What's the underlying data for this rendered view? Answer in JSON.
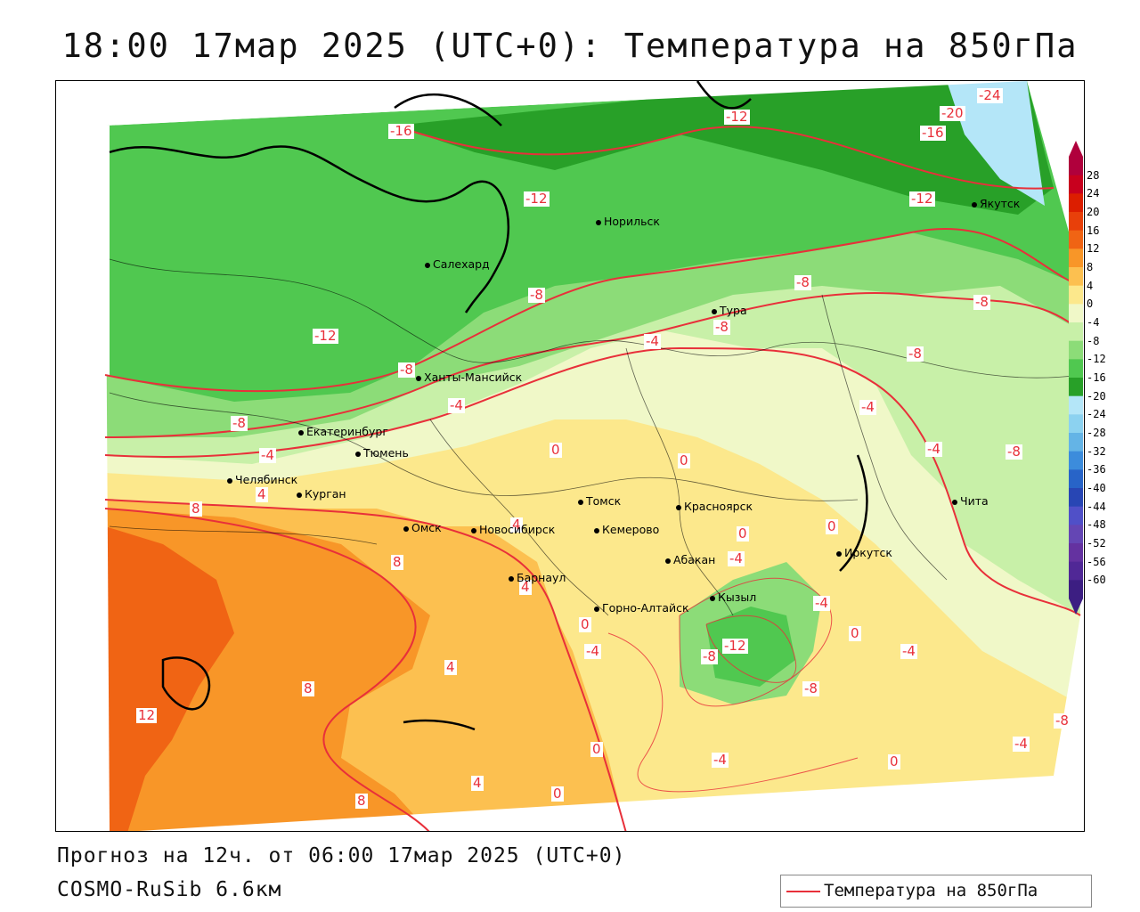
{
  "title": "18:00 17мар 2025 (UTC+0): Температура на 850гПа",
  "footer": {
    "forecast": "Прогноз на 12ч. от 06:00 17мар 2025 (UTC+0)",
    "model": "COSMO-RuSib 6.6км"
  },
  "legend": {
    "label": "Температура на 850гПа",
    "line_color": "#e8303a"
  },
  "colorbar": {
    "ticks": [
      "28",
      "24",
      "20",
      "16",
      "12",
      "8",
      "4",
      "0",
      "-4",
      "-8",
      "-12",
      "-16",
      "-20",
      "-24",
      "-28",
      "-32",
      "-36",
      "-40",
      "-44",
      "-48",
      "-52",
      "-56",
      "-60"
    ],
    "colors": [
      "#b0003c",
      "#c8001e",
      "#dc1e00",
      "#e8400a",
      "#f06414",
      "#f89628",
      "#fcc050",
      "#fce88c",
      "#f0f8c8",
      "#c8f0a8",
      "#8cdc78",
      "#50c850",
      "#28a028",
      "#b4e6f8",
      "#8cd2f0",
      "#64b4e6",
      "#3c8cdc",
      "#2864c8",
      "#2846b4",
      "#5050c8",
      "#6446b4",
      "#6432a0",
      "#502896",
      "#3c1e82"
    ]
  },
  "cities": [
    {
      "name": "Норильск"
    },
    {
      "name": "Якутск"
    },
    {
      "name": "Салехард"
    },
    {
      "name": "Тура"
    },
    {
      "name": "Ханты-Мансийск"
    },
    {
      "name": "Екатеринбург"
    },
    {
      "name": "Тюмень"
    },
    {
      "name": "Челябинск"
    },
    {
      "name": "Курган"
    },
    {
      "name": "Омск"
    },
    {
      "name": "Новосибирск"
    },
    {
      "name": "Томск"
    },
    {
      "name": "Кемерово"
    },
    {
      "name": "Красноярск"
    },
    {
      "name": "Абакан"
    },
    {
      "name": "Барнаул"
    },
    {
      "name": "Горно-Алтайск"
    },
    {
      "name": "Кызыл"
    },
    {
      "name": "Иркутск"
    },
    {
      "name": "Чита"
    }
  ],
  "isotherm_labels": [
    "-24",
    "-20",
    "-16",
    "-16",
    "-12",
    "-12",
    "-12",
    "-12",
    "-8",
    "-8",
    "-8",
    "-8",
    "-8",
    "-8",
    "-4",
    "-4",
    "-4",
    "-4",
    "-4",
    "0",
    "0",
    "0",
    "0",
    "4",
    "4",
    "4",
    "4",
    "8",
    "8",
    "8",
    "8",
    "12",
    "-12",
    "-8",
    "-4",
    "0",
    "-8",
    "-4",
    "0",
    "0",
    "-4",
    "-8",
    "-4",
    "0",
    "-4",
    "-8",
    "-8",
    "-4",
    "4",
    "0"
  ]
}
